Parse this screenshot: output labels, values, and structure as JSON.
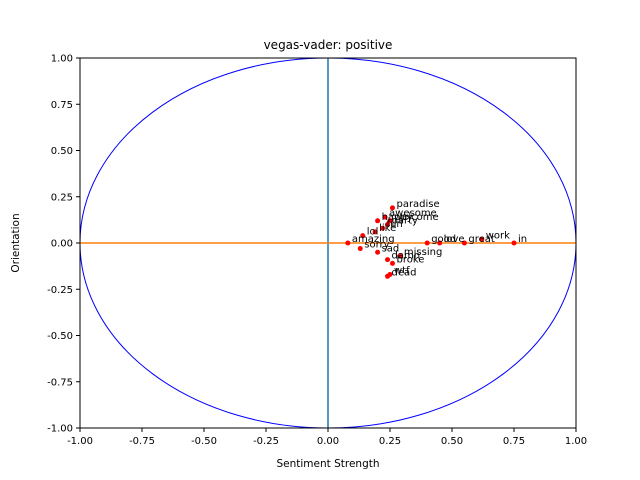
{
  "chart_data": {
    "type": "scatter",
    "title": "vegas-vader: positive",
    "xlabel": "Sentiment Strength",
    "ylabel": "Orientation",
    "xlim": [
      -1.0,
      1.0
    ],
    "ylim": [
      -1.0,
      1.0
    ],
    "x_ticks": [
      "-1.00",
      "-0.75",
      "-0.50",
      "-0.25",
      "0.00",
      "0.25",
      "0.50",
      "0.75",
      "1.00"
    ],
    "y_ticks": [
      "-1.00",
      "-0.75",
      "-0.50",
      "-0.25",
      "0.00",
      "0.25",
      "0.50",
      "0.75",
      "1.00"
    ],
    "grid": false,
    "unit_circle_color": "#0000ff",
    "vertical_line_color": "#1f77b4",
    "horizontal_line_color": "#ff7f0e",
    "point_color": "#ff0000",
    "points": [
      {
        "x": 0.26,
        "y": 0.19,
        "label": "paradise"
      },
      {
        "x": 0.23,
        "y": 0.14,
        "label": "awesome"
      },
      {
        "x": 0.25,
        "y": 0.12,
        "label": "welcome"
      },
      {
        "x": 0.2,
        "y": 0.12,
        "label": "happy"
      },
      {
        "x": 0.24,
        "y": 0.1,
        "label": "party"
      },
      {
        "x": 0.22,
        "y": 0.08,
        "label": "fun"
      },
      {
        "x": 0.19,
        "y": 0.06,
        "label": "like"
      },
      {
        "x": 0.14,
        "y": 0.04,
        "label": "lol"
      },
      {
        "x": 0.08,
        "y": 0.0,
        "label": "amazing"
      },
      {
        "x": 0.62,
        "y": 0.02,
        "label": "work"
      },
      {
        "x": 0.55,
        "y": 0.0,
        "label": "great"
      },
      {
        "x": 0.45,
        "y": 0.0,
        "label": "love"
      },
      {
        "x": 0.4,
        "y": 0.0,
        "label": "good"
      },
      {
        "x": 0.75,
        "y": 0.0,
        "label": "in"
      },
      {
        "x": 0.13,
        "y": -0.03,
        "label": "sorry"
      },
      {
        "x": 0.2,
        "y": -0.05,
        "label": "sad"
      },
      {
        "x": 0.29,
        "y": -0.07,
        "label": "missing"
      },
      {
        "x": 0.24,
        "y": -0.09,
        "label": "damn"
      },
      {
        "x": 0.26,
        "y": -0.11,
        "label": "broke"
      },
      {
        "x": 0.25,
        "y": -0.17,
        "label": "wtf"
      },
      {
        "x": 0.24,
        "y": -0.18,
        "label": "dead"
      }
    ]
  }
}
